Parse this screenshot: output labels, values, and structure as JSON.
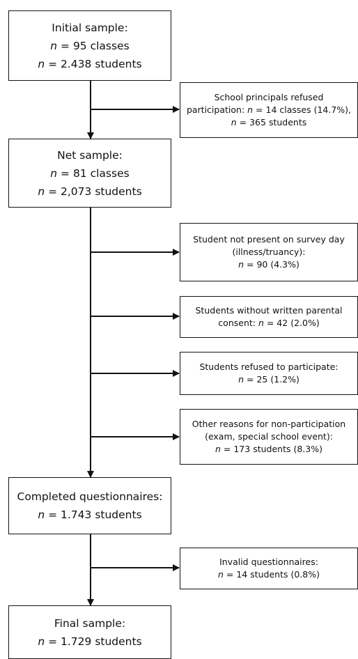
{
  "main_boxes": {
    "initial": {
      "lines": [
        {
          "pre": "Initial sample:"
        },
        {
          "italic": "n",
          "post": " = 95 classes"
        },
        {
          "italic": "n",
          "post": " = 2.438 students"
        }
      ]
    },
    "net": {
      "lines": [
        {
          "pre": "Net sample:"
        },
        {
          "italic": "n",
          "post": " = 81 classes"
        },
        {
          "italic": "n",
          "post": " = 2,073 students"
        }
      ]
    },
    "completed": {
      "lines": [
        {
          "pre": "Completed questionnaires:"
        },
        {
          "italic": "n",
          "post": " = 1.743 students"
        }
      ]
    },
    "final": {
      "lines": [
        {
          "pre": "Final sample:"
        },
        {
          "italic": "n",
          "post": " = 1.729 students"
        }
      ]
    }
  },
  "exclusion_boxes": {
    "principals": {
      "lines": [
        {
          "pre": "School principals refused"
        },
        {
          "pre": "participation: ",
          "italic": "n",
          "post": " = 14 classes (14.7%),"
        },
        {
          "italic": "n",
          "post": " = 365 students"
        }
      ]
    },
    "not_present": {
      "lines": [
        {
          "pre": "Student not present on survey day"
        },
        {
          "pre": "(illness/truancy):"
        },
        {
          "italic": "n",
          "post": " = 90 (4.3%)"
        }
      ]
    },
    "no_consent": {
      "lines": [
        {
          "pre": "Students without written parental"
        },
        {
          "pre": "consent: ",
          "italic": "n",
          "post": " = 42 (2.0%)"
        }
      ]
    },
    "refused": {
      "lines": [
        {
          "pre": "Students refused to participate:"
        },
        {
          "italic": "n",
          "post": " = 25 (1.2%)"
        }
      ]
    },
    "other": {
      "lines": [
        {
          "pre": "Other reasons for non-participation"
        },
        {
          "pre": "(exam, special school event):"
        },
        {
          "italic": "n",
          "post": " = 173 students (8.3%)"
        }
      ]
    },
    "invalid": {
      "lines": [
        {
          "pre": "Invalid questionnaires:"
        },
        {
          "italic": "n",
          "post": " = 14 students (0.8%)"
        }
      ]
    }
  }
}
